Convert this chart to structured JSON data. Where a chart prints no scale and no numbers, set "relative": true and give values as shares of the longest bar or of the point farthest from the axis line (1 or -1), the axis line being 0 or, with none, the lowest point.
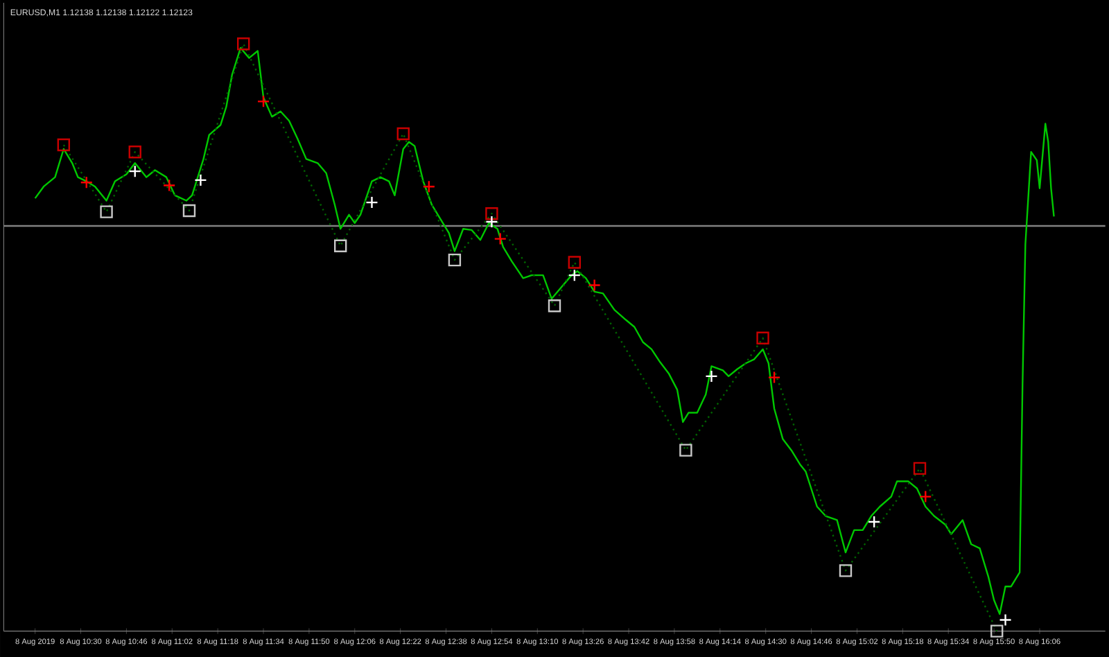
{
  "chart_data": {
    "type": "line",
    "title": "EURUSD,M1 1.12138 1.12138 1.12122 1.12123",
    "relative": true,
    "grid": false,
    "xlim": [
      "2019-08-08T10:03",
      "2019-08-08T16:29"
    ],
    "xticks": [
      {
        "value": "2019-08-08T10:14",
        "label": "8 Aug 2019"
      },
      {
        "value": "2019-08-08T10:30",
        "label": "8 Aug 10:30"
      },
      {
        "value": "2019-08-08T10:46",
        "label": "8 Aug 10:46"
      },
      {
        "value": "2019-08-08T11:02",
        "label": "8 Aug 11:02"
      },
      {
        "value": "2019-08-08T11:18",
        "label": "8 Aug 11:18"
      },
      {
        "value": "2019-08-08T11:34",
        "label": "8 Aug 11:34"
      },
      {
        "value": "2019-08-08T11:50",
        "label": "8 Aug 11:50"
      },
      {
        "value": "2019-08-08T12:06",
        "label": "8 Aug 12:06"
      },
      {
        "value": "2019-08-08T12:22",
        "label": "8 Aug 12:22"
      },
      {
        "value": "2019-08-08T12:38",
        "label": "8 Aug 12:38"
      },
      {
        "value": "2019-08-08T12:54",
        "label": "8 Aug 12:54"
      },
      {
        "value": "2019-08-08T13:10",
        "label": "8 Aug 13:10"
      },
      {
        "value": "2019-08-08T13:26",
        "label": "8 Aug 13:26"
      },
      {
        "value": "2019-08-08T13:42",
        "label": "8 Aug 13:42"
      },
      {
        "value": "2019-08-08T13:58",
        "label": "8 Aug 13:58"
      },
      {
        "value": "2019-08-08T14:14",
        "label": "8 Aug 14:14"
      },
      {
        "value": "2019-08-08T14:30",
        "label": "8 Aug 14:30"
      },
      {
        "value": "2019-08-08T14:46",
        "label": "8 Aug 14:46"
      },
      {
        "value": "2019-08-08T15:02",
        "label": "8 Aug 15:02"
      },
      {
        "value": "2019-08-08T15:18",
        "label": "8 Aug 15:18"
      },
      {
        "value": "2019-08-08T15:34",
        "label": "8 Aug 15:34"
      },
      {
        "value": "2019-08-08T15:50",
        "label": "8 Aug 15:50"
      },
      {
        "value": "2019-08-08T16:06",
        "label": "8 Aug 16:06"
      }
    ],
    "ref_lines": [
      {
        "axis": "y",
        "value": 0.69,
        "color": "#808080"
      }
    ],
    "series": [
      {
        "color": "#00c800",
        "line_style": "solid",
        "marker": "none",
        "x": [
          "2019-08-08T10:14",
          "2019-08-08T10:17",
          "2019-08-08T10:21",
          "2019-08-08T10:24",
          "2019-08-08T10:27",
          "2019-08-08T10:29",
          "2019-08-08T10:32",
          "2019-08-08T10:35",
          "2019-08-08T10:39",
          "2019-08-08T10:42",
          "2019-08-08T10:46",
          "2019-08-08T10:49",
          "2019-08-08T10:53",
          "2019-08-08T10:56",
          "2019-08-08T11:00",
          "2019-08-08T11:03",
          "2019-08-08T11:07",
          "2019-08-08T11:09",
          "2019-08-08T11:13",
          "2019-08-08T11:15",
          "2019-08-08T11:19",
          "2019-08-08T11:21",
          "2019-08-08T11:23",
          "2019-08-08T11:26",
          "2019-08-08T11:29",
          "2019-08-08T11:32",
          "2019-08-08T11:34",
          "2019-08-08T11:37",
          "2019-08-08T11:40",
          "2019-08-08T11:43",
          "2019-08-08T11:46",
          "2019-08-08T11:49",
          "2019-08-08T11:53",
          "2019-08-08T11:56",
          "2019-08-08T11:59",
          "2019-08-08T12:01",
          "2019-08-08T12:04",
          "2019-08-08T12:06",
          "2019-08-08T12:08",
          "2019-08-08T12:12",
          "2019-08-08T12:15",
          "2019-08-08T12:18",
          "2019-08-08T12:20",
          "2019-08-08T12:23",
          "2019-08-08T12:25",
          "2019-08-08T12:27",
          "2019-08-08T12:30",
          "2019-08-08T12:33",
          "2019-08-08T12:36",
          "2019-08-08T12:39",
          "2019-08-08T12:41",
          "2019-08-08T12:44",
          "2019-08-08T12:47",
          "2019-08-08T12:50",
          "2019-08-08T12:53",
          "2019-08-08T12:56",
          "2019-08-08T12:58",
          "2019-08-08T13:01",
          "2019-08-08T13:05",
          "2019-08-08T13:08",
          "2019-08-08T13:12",
          "2019-08-08T13:15",
          "2019-08-08T13:19",
          "2019-08-08T13:22",
          "2019-08-08T13:24",
          "2019-08-08T13:27",
          "2019-08-08T13:30",
          "2019-08-08T13:33",
          "2019-08-08T13:37",
          "2019-08-08T13:41",
          "2019-08-08T13:44",
          "2019-08-08T13:47",
          "2019-08-08T13:50",
          "2019-08-08T13:53",
          "2019-08-08T13:56",
          "2019-08-08T13:59",
          "2019-08-08T14:01",
          "2019-08-08T14:03",
          "2019-08-08T14:06",
          "2019-08-08T14:09",
          "2019-08-08T14:11",
          "2019-08-08T14:15",
          "2019-08-08T14:17",
          "2019-08-08T14:20",
          "2019-08-08T14:23",
          "2019-08-08T14:26",
          "2019-08-08T14:29",
          "2019-08-08T14:31",
          "2019-08-08T14:33",
          "2019-08-08T14:36",
          "2019-08-08T14:39",
          "2019-08-08T14:42",
          "2019-08-08T14:44",
          "2019-08-08T14:48",
          "2019-08-08T14:51",
          "2019-08-08T14:55",
          "2019-08-08T14:58",
          "2019-08-08T15:01",
          "2019-08-08T15:04",
          "2019-08-08T15:07",
          "2019-08-08T15:10",
          "2019-08-08T15:14",
          "2019-08-08T15:16",
          "2019-08-08T15:20",
          "2019-08-08T15:23",
          "2019-08-08T15:26",
          "2019-08-08T15:29",
          "2019-08-08T15:33",
          "2019-08-08T15:35",
          "2019-08-08T15:39",
          "2019-08-08T15:42",
          "2019-08-08T15:45",
          "2019-08-08T15:48",
          "2019-08-08T15:50",
          "2019-08-08T15:52",
          "2019-08-08T15:54",
          "2019-08-08T15:56",
          "2019-08-08T15:59",
          "2019-08-08T16:00",
          "2019-08-08T16:01",
          "2019-08-08T16:03",
          "2019-08-08T16:05",
          "2019-08-08T16:06",
          "2019-08-08T16:08",
          "2019-08-08T16:09",
          "2019-08-08T16:10",
          "2019-08-08T16:11"
        ],
        "values": [
          0.737,
          0.757,
          0.773,
          0.821,
          0.797,
          0.773,
          0.766,
          0.757,
          0.733,
          0.766,
          0.778,
          0.797,
          0.773,
          0.785,
          0.773,
          0.742,
          0.733,
          0.742,
          0.804,
          0.845,
          0.862,
          0.893,
          0.947,
          0.993,
          0.976,
          0.988,
          0.909,
          0.876,
          0.885,
          0.869,
          0.838,
          0.804,
          0.797,
          0.78,
          0.726,
          0.685,
          0.709,
          0.695,
          0.709,
          0.766,
          0.773,
          0.766,
          0.742,
          0.821,
          0.833,
          0.826,
          0.766,
          0.726,
          0.702,
          0.678,
          0.647,
          0.685,
          0.683,
          0.666,
          0.695,
          0.685,
          0.654,
          0.63,
          0.601,
          0.606,
          0.606,
          0.566,
          0.589,
          0.606,
          0.613,
          0.601,
          0.578,
          0.575,
          0.547,
          0.53,
          0.518,
          0.492,
          0.48,
          0.458,
          0.439,
          0.411,
          0.356,
          0.372,
          0.372,
          0.403,
          0.451,
          0.444,
          0.434,
          0.446,
          0.456,
          0.463,
          0.48,
          0.456,
          0.379,
          0.327,
          0.308,
          0.284,
          0.272,
          0.212,
          0.196,
          0.189,
          0.134,
          0.172,
          0.172,
          0.196,
          0.212,
          0.229,
          0.255,
          0.255,
          0.243,
          0.212,
          0.196,
          0.181,
          0.165,
          0.189,
          0.148,
          0.141,
          0.093,
          0.053,
          0.029,
          0.076,
          0.076,
          0.1,
          0.42,
          0.659,
          0.816,
          0.802,
          0.754,
          0.864,
          0.833,
          0.754,
          0.706
        ]
      },
      {
        "type": "line",
        "color": "#006400",
        "line_style": "dotted",
        "marker": "none",
        "x": [
          "2019-08-08T10:24",
          "2019-08-08T10:39",
          "2019-08-08T10:49",
          "2019-08-08T11:08",
          "2019-08-08T11:27",
          "2019-08-08T12:01",
          "2019-08-08T12:23",
          "2019-08-08T12:41",
          "2019-08-08T12:54",
          "2019-08-08T13:16",
          "2019-08-08T13:23",
          "2019-08-08T14:02",
          "2019-08-08T14:29",
          "2019-08-08T14:58",
          "2019-08-08T15:24",
          "2019-08-08T15:51"
        ],
        "values": [
          0.828,
          0.714,
          0.816,
          0.716,
          1.0,
          0.656,
          0.847,
          0.632,
          0.711,
          0.554,
          0.628,
          0.308,
          0.499,
          0.103,
          0.277,
          0
        ]
      },
      {
        "type": "scatter",
        "color": "#c80000",
        "marker": "square",
        "x": [
          "2019-08-08T10:24",
          "2019-08-08T10:49",
          "2019-08-08T11:27",
          "2019-08-08T12:23",
          "2019-08-08T12:54",
          "2019-08-08T13:23",
          "2019-08-08T14:29",
          "2019-08-08T15:24"
        ],
        "values": [
          0.828,
          0.816,
          1.0,
          0.847,
          0.711,
          0.628,
          0.499,
          0.277
        ]
      },
      {
        "type": "scatter",
        "color": "#c8c8c8",
        "marker": "square",
        "x": [
          "2019-08-08T10:39",
          "2019-08-08T11:08",
          "2019-08-08T12:01",
          "2019-08-08T12:41",
          "2019-08-08T13:16",
          "2019-08-08T14:02",
          "2019-08-08T14:58",
          "2019-08-08T15:51"
        ],
        "values": [
          0.714,
          0.716,
          0.656,
          0.632,
          0.554,
          0.308,
          0.103,
          0
        ]
      },
      {
        "type": "scatter",
        "color": "#ff0000",
        "marker": "cross",
        "x": [
          "2019-08-08T10:32",
          "2019-08-08T11:01",
          "2019-08-08T11:34",
          "2019-08-08T12:32",
          "2019-08-08T12:57",
          "2019-08-08T13:30",
          "2019-08-08T14:33",
          "2019-08-08T15:26"
        ],
        "values": [
          0.764,
          0.759,
          0.902,
          0.757,
          0.668,
          0.589,
          0.432,
          0.229
        ]
      },
      {
        "type": "scatter",
        "color": "#ffffff",
        "marker": "cross",
        "x": [
          "2019-08-08T10:49",
          "2019-08-08T11:12",
          "2019-08-08T12:12",
          "2019-08-08T12:54",
          "2019-08-08T13:23",
          "2019-08-08T14:11",
          "2019-08-08T15:08",
          "2019-08-08T15:54"
        ],
        "values": [
          0.783,
          0.768,
          0.73,
          0.697,
          0.606,
          0.434,
          0.186,
          0.019
        ]
      }
    ]
  }
}
